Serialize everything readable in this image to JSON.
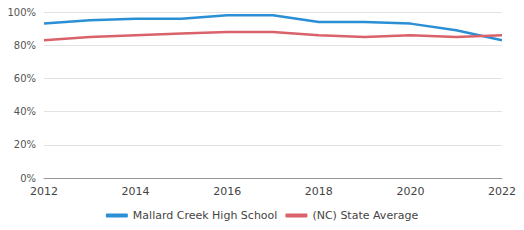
{
  "chart_data": {
    "type": "line",
    "x": [
      2012,
      2013,
      2014,
      2015,
      2016,
      2017,
      2018,
      2019,
      2020,
      2021,
      2022
    ],
    "series": [
      {
        "name": "Mallard Creek High School",
        "color": "#2b8fd6",
        "values": [
          93,
          95,
          96,
          96,
          98,
          98,
          94,
          94,
          93,
          89,
          83
        ]
      },
      {
        "name": "(NC) State Average",
        "color": "#d9626b",
        "values": [
          83,
          85,
          86,
          87,
          88,
          88,
          86,
          85,
          86,
          85,
          86
        ]
      }
    ],
    "xlim": [
      2012,
      2022
    ],
    "xticks": [
      2012,
      2014,
      2016,
      2018,
      2020,
      2022
    ],
    "ylim": [
      0,
      100
    ],
    "yticks": [
      {
        "value": 0,
        "label": "0%"
      },
      {
        "value": 20,
        "label": "20%"
      },
      {
        "value": 40,
        "label": "40%"
      },
      {
        "value": 60,
        "label": "60%"
      },
      {
        "value": 80,
        "label": "80%"
      },
      {
        "value": 100,
        "label": "100%"
      }
    ],
    "grid": true,
    "legend": "bottom"
  }
}
